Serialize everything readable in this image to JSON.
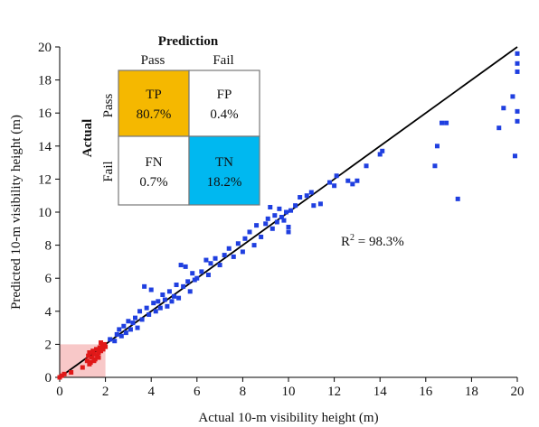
{
  "chart_data": {
    "type": "scatter",
    "xlabel": "Actual 10-m visibility height (m)",
    "ylabel": "Predicted 10-m visibility height (m)",
    "xlim": [
      0,
      20
    ],
    "ylim": [
      0,
      20
    ],
    "x_ticks": [
      "0",
      "2",
      "4",
      "6",
      "8",
      "10",
      "12",
      "14",
      "16",
      "18",
      "20"
    ],
    "y_ticks": [
      "0",
      "2",
      "4",
      "6",
      "8",
      "10",
      "12",
      "14",
      "16",
      "18",
      "20"
    ],
    "grid": false,
    "annotation": "R² = 98.3%",
    "reference_line": {
      "from": [
        0,
        0
      ],
      "to": [
        20,
        20
      ],
      "color": "#000000"
    },
    "highlight_region": {
      "x": [
        0,
        2
      ],
      "y": [
        0,
        2
      ],
      "color": "#f8c8c8"
    },
    "series": [
      {
        "color": "#1f3fe0",
        "points": [
          [
            2.2,
            2.3
          ],
          [
            2.4,
            2.2
          ],
          [
            2.5,
            2.6
          ],
          [
            2.6,
            2.9
          ],
          [
            2.7,
            2.5
          ],
          [
            2.8,
            3.1
          ],
          [
            2.9,
            2.7
          ],
          [
            3.0,
            3.4
          ],
          [
            3.1,
            2.9
          ],
          [
            3.2,
            3.3
          ],
          [
            3.3,
            3.6
          ],
          [
            3.4,
            3.0
          ],
          [
            3.5,
            4.0
          ],
          [
            3.6,
            3.5
          ],
          [
            3.7,
            5.5
          ],
          [
            3.8,
            4.2
          ],
          [
            3.9,
            3.8
          ],
          [
            4.0,
            5.3
          ],
          [
            4.1,
            4.5
          ],
          [
            4.2,
            4.0
          ],
          [
            4.3,
            4.6
          ],
          [
            4.4,
            4.2
          ],
          [
            4.5,
            5.0
          ],
          [
            4.6,
            4.7
          ],
          [
            4.7,
            4.3
          ],
          [
            4.8,
            5.2
          ],
          [
            4.9,
            4.6
          ],
          [
            5.0,
            4.9
          ],
          [
            5.1,
            5.6
          ],
          [
            5.2,
            4.8
          ],
          [
            5.3,
            6.8
          ],
          [
            5.4,
            5.5
          ],
          [
            5.5,
            6.7
          ],
          [
            5.6,
            5.8
          ],
          [
            5.7,
            5.2
          ],
          [
            5.8,
            6.3
          ],
          [
            5.9,
            5.9
          ],
          [
            6.0,
            6.0
          ],
          [
            6.2,
            6.4
          ],
          [
            6.4,
            7.1
          ],
          [
            6.5,
            6.2
          ],
          [
            6.6,
            6.9
          ],
          [
            6.8,
            7.2
          ],
          [
            7.0,
            6.8
          ],
          [
            7.2,
            7.4
          ],
          [
            7.4,
            7.8
          ],
          [
            7.6,
            7.3
          ],
          [
            7.8,
            8.1
          ],
          [
            8.0,
            7.6
          ],
          [
            8.1,
            8.4
          ],
          [
            8.3,
            8.8
          ],
          [
            8.5,
            8.0
          ],
          [
            8.6,
            9.2
          ],
          [
            8.8,
            8.5
          ],
          [
            9.0,
            9.3
          ],
          [
            9.1,
            9.6
          ],
          [
            9.2,
            10.3
          ],
          [
            9.3,
            9.0
          ],
          [
            9.4,
            9.8
          ],
          [
            9.5,
            9.4
          ],
          [
            9.6,
            10.2
          ],
          [
            9.7,
            9.7
          ],
          [
            9.8,
            9.5
          ],
          [
            9.9,
            10.0
          ],
          [
            10.0,
            9.1
          ],
          [
            10.0,
            8.8
          ],
          [
            10.1,
            10.1
          ],
          [
            10.3,
            10.4
          ],
          [
            10.5,
            10.9
          ],
          [
            10.8,
            11.0
          ],
          [
            11.0,
            11.2
          ],
          [
            11.1,
            10.4
          ],
          [
            11.4,
            10.5
          ],
          [
            11.8,
            11.8
          ],
          [
            12.0,
            11.6
          ],
          [
            12.1,
            12.2
          ],
          [
            12.6,
            11.9
          ],
          [
            12.8,
            11.7
          ],
          [
            13.0,
            11.9
          ],
          [
            13.4,
            12.8
          ],
          [
            14.0,
            13.5
          ],
          [
            14.1,
            13.7
          ],
          [
            16.4,
            12.8
          ],
          [
            16.5,
            14.0
          ],
          [
            16.7,
            15.4
          ],
          [
            16.9,
            15.4
          ],
          [
            17.4,
            10.8
          ],
          [
            19.2,
            15.1
          ],
          [
            19.4,
            16.3
          ],
          [
            19.8,
            17.0
          ],
          [
            19.9,
            13.4
          ],
          [
            20.0,
            15.5
          ],
          [
            20.0,
            16.1
          ],
          [
            20.0,
            18.5
          ],
          [
            20.0,
            19.0
          ],
          [
            20.0,
            19.6
          ]
        ]
      },
      {
        "color": "#e01818",
        "points": [
          [
            0.0,
            0.0
          ],
          [
            0.1,
            0.1
          ],
          [
            0.2,
            0.2
          ],
          [
            0.5,
            0.3
          ],
          [
            1.0,
            0.6
          ],
          [
            1.2,
            1.0
          ],
          [
            1.25,
            1.3
          ],
          [
            1.3,
            1.5
          ],
          [
            1.35,
            0.9
          ],
          [
            1.4,
            1.2
          ],
          [
            1.45,
            1.6
          ],
          [
            1.5,
            1.4
          ],
          [
            1.55,
            1.1
          ],
          [
            1.6,
            1.7
          ],
          [
            1.65,
            1.3
          ],
          [
            1.7,
            1.5
          ],
          [
            1.75,
            1.8
          ],
          [
            1.8,
            1.6
          ],
          [
            1.85,
            1.9
          ],
          [
            1.9,
            1.7
          ],
          [
            1.95,
            2.0
          ],
          [
            2.0,
            1.85
          ],
          [
            1.3,
            0.8
          ],
          [
            1.5,
            1.0
          ],
          [
            1.7,
            1.2
          ],
          [
            1.8,
            2.1
          ]
        ]
      }
    ]
  },
  "confusion_matrix": {
    "title": "Prediction",
    "axis_label": "Actual",
    "col_labels": [
      "Pass",
      "Fail"
    ],
    "row_labels": [
      "Pass",
      "Fail"
    ],
    "cells": [
      {
        "code": "TP",
        "value": "80.7%",
        "fill": "#f5b800"
      },
      {
        "code": "FP",
        "value": "0.4%",
        "fill": "#ffffff"
      },
      {
        "code": "FN",
        "value": "0.7%",
        "fill": "#ffffff"
      },
      {
        "code": "TN",
        "value": "18.2%",
        "fill": "#00b8f0"
      }
    ]
  }
}
